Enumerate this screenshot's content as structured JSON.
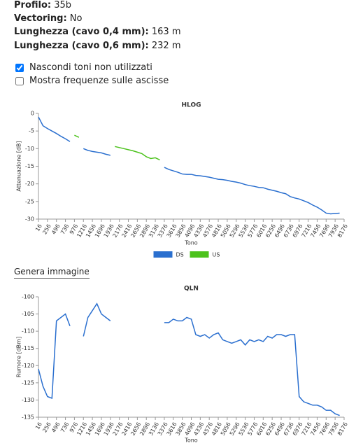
{
  "info": [
    {
      "label": "Profilo:",
      "value": "35b"
    },
    {
      "label": "Vectoring:",
      "value": "No"
    },
    {
      "label": "Lunghezza (cavo 0,4 mm):",
      "value": "163 m"
    },
    {
      "label": "Lunghezza (cavo 0,6 mm):",
      "value": "232 m"
    }
  ],
  "options": [
    {
      "label": "Nascondi toni non utilizzati",
      "checked": true
    },
    {
      "label": "Mostra frequenze sulle ascisse",
      "checked": false
    }
  ],
  "button": "Genera immagine",
  "chart_data": [
    {
      "type": "line",
      "title": "HLOG",
      "x_label": "Tono",
      "y_label": "Attenuazione [dB]",
      "x": [
        16,
        136,
        256,
        376,
        496,
        616,
        736,
        856,
        976,
        1096,
        1216,
        1336,
        1456,
        1576,
        1696,
        1816,
        1936,
        2056,
        2176,
        2296,
        2416,
        2536,
        2656,
        2776,
        2896,
        3016,
        3136,
        3256,
        3376,
        3496,
        3616,
        3736,
        3856,
        3976,
        4096,
        4216,
        4336,
        4456,
        4576,
        4696,
        4816,
        4936,
        5056,
        5176,
        5296,
        5416,
        5536,
        5656,
        5776,
        5896,
        6016,
        6136,
        6256,
        6376,
        6496,
        6616,
        6736,
        6856,
        6976,
        7096,
        7216,
        7336,
        7456,
        7576,
        7696,
        7816,
        7936,
        8056,
        8176
      ],
      "series": [
        {
          "name": "DS",
          "color": "#2a6fcf",
          "values": [
            -1,
            -3.5,
            -4.3,
            -5,
            -5.7,
            -6.5,
            -7.2,
            -8,
            null,
            null,
            -10,
            -10.5,
            -10.8,
            -11,
            -11.2,
            -11.6,
            -11.9,
            null,
            null,
            null,
            null,
            null,
            null,
            null,
            null,
            null,
            null,
            null,
            -15.3,
            -15.9,
            -16.3,
            -16.7,
            -17.2,
            -17.3,
            -17.3,
            -17.6,
            -17.7,
            -17.9,
            -18.1,
            -18.4,
            -18.7,
            -18.8,
            -19,
            -19.3,
            -19.5,
            -19.8,
            -20.2,
            -20.5,
            -20.7,
            -21,
            -21.1,
            -21.5,
            -21.8,
            -22.1,
            -22.5,
            -22.8,
            -23.6,
            -24,
            -24.3,
            -24.8,
            -25.3,
            -26,
            -26.6,
            -27.4,
            -28.3,
            -28.5,
            -28.4,
            -28.3,
            null
          ]
        },
        {
          "name": "US",
          "color": "#4cc21c",
          "values": [
            null,
            null,
            null,
            null,
            null,
            null,
            null,
            null,
            -6.2,
            -6.8,
            null,
            null,
            null,
            null,
            null,
            null,
            null,
            -9.4,
            -9.7,
            -10,
            -10.3,
            -10.6,
            -11,
            -11.4,
            -12.3,
            -12.8,
            -12.6,
            -13.2,
            null,
            null,
            null,
            null,
            null,
            null,
            null,
            null,
            null,
            null,
            null,
            null,
            null,
            null,
            null,
            null,
            null,
            null,
            null,
            null,
            null,
            null,
            null,
            null,
            null,
            null,
            null,
            null,
            null,
            null,
            null,
            null,
            null,
            null,
            null,
            null,
            null,
            null,
            null,
            null,
            null
          ]
        }
      ],
      "xlim": [
        16,
        8176
      ],
      "xticks": [
        16,
        256,
        496,
        736,
        976,
        1216,
        1456,
        1696,
        1936,
        2176,
        2416,
        2656,
        2896,
        3136,
        3376,
        3616,
        3856,
        4096,
        4336,
        4576,
        4816,
        5056,
        5296,
        5536,
        5776,
        6016,
        6256,
        6496,
        6736,
        6976,
        7216,
        7456,
        7696,
        7936,
        8176
      ],
      "ylim": [
        -30,
        0
      ],
      "yticks": [
        0,
        -5,
        -10,
        -15,
        -20,
        -25,
        -30
      ],
      "legend": "bottom"
    },
    {
      "type": "line",
      "title": "QLN",
      "x_label": "Tono",
      "y_label": "Rumore [dBm]",
      "x": [
        16,
        136,
        256,
        376,
        496,
        616,
        736,
        856,
        976,
        1096,
        1216,
        1336,
        1456,
        1576,
        1696,
        1816,
        1936,
        2056,
        2176,
        2296,
        2416,
        2536,
        2656,
        2776,
        2896,
        3016,
        3136,
        3256,
        3376,
        3496,
        3616,
        3736,
        3856,
        3976,
        4096,
        4216,
        4336,
        4456,
        4576,
        4696,
        4816,
        4936,
        5056,
        5176,
        5296,
        5416,
        5536,
        5656,
        5776,
        5896,
        6016,
        6136,
        6256,
        6376,
        6496,
        6616,
        6736,
        6856,
        6976,
        7096,
        7216,
        7336,
        7456,
        7576,
        7696,
        7816,
        7936,
        8056,
        8176
      ],
      "series": [
        {
          "color": "#2a6fcf",
          "values": [
            -121,
            -126,
            -129,
            -129.5,
            -107,
            -106,
            -105,
            -108.5,
            null,
            null,
            -111.5,
            -106,
            -104,
            -102,
            -105,
            -106,
            -107,
            null,
            null,
            null,
            null,
            null,
            null,
            null,
            null,
            null,
            null,
            null,
            -107.5,
            -107.5,
            -106.5,
            -107,
            -107,
            -106,
            -106.5,
            -111,
            -111.5,
            -111,
            -112,
            -111,
            -110.5,
            -112.5,
            -113,
            -113.5,
            -113,
            -112.5,
            -114,
            -112.5,
            -113,
            -112.5,
            -113,
            -111.5,
            -112,
            -111,
            -111,
            -111.5,
            -111,
            -111,
            -129,
            -130.5,
            -131,
            -131.5,
            -131.5,
            -132,
            -133,
            -133,
            -134,
            -134.5,
            null
          ]
        }
      ],
      "xlim": [
        16,
        8176
      ],
      "xticks": [
        16,
        256,
        496,
        736,
        976,
        1216,
        1456,
        1696,
        1936,
        2176,
        2416,
        2656,
        2896,
        3136,
        3376,
        3616,
        3856,
        4096,
        4336,
        4576,
        4816,
        5056,
        5296,
        5536,
        5776,
        6016,
        6256,
        6496,
        6736,
        6976,
        7216,
        7456,
        7696,
        7936,
        8176
      ],
      "ylim": [
        -135,
        -100
      ],
      "yticks": [
        -100,
        -105,
        -110,
        -115,
        -120,
        -125,
        -130,
        -135
      ]
    }
  ]
}
